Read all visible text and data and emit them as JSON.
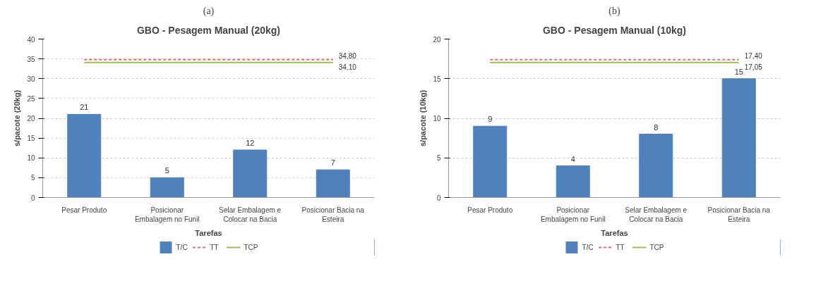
{
  "chart_data": [
    {
      "type": "bar",
      "title": "GBO - Pesagem Manual (20kg)",
      "xlabel": "Tarefas",
      "ylabel": "s/pacote (20kg)",
      "annotations": [
        "(a)"
      ],
      "categories": [
        "Pesar Produto",
        "Posicionar Embalagem no Funil",
        "Selar Embalagem e Colocar na Bacia",
        "Posicionar Bacia na Esteira"
      ],
      "series": [
        {
          "name": "T/C",
          "type": "bar",
          "color": "#4f81bd",
          "values": [
            21,
            5,
            12,
            7
          ],
          "value_labels": [
            "21",
            "5",
            "12",
            "7"
          ]
        },
        {
          "name": "TT",
          "type": "line",
          "line_style": "dashed",
          "color": "#e07070",
          "values": [
            34.8,
            34.8,
            34.8,
            34.8
          ],
          "value_labels": [
            null,
            null,
            null,
            "34,80"
          ]
        },
        {
          "name": "TCP",
          "type": "line",
          "line_style": "solid",
          "color": "#9bbb59",
          "values": [
            34.1,
            34.1,
            34.1,
            34.1
          ],
          "value_labels": [
            null,
            null,
            null,
            "34,10"
          ]
        }
      ],
      "ylim": [
        0,
        40
      ],
      "yticks": [
        0,
        5,
        10,
        15,
        20,
        25,
        30,
        35,
        40
      ],
      "grid": "y",
      "legend": "bottom"
    },
    {
      "type": "bar",
      "title": "GBO - Pesagem Manual (10kg)",
      "xlabel": "Tarefas",
      "ylabel": "s/pacote (10kg)",
      "annotations": [
        "(b)"
      ],
      "categories": [
        "Pesar Produto",
        "Posicionar Embalagem no Funil",
        "Selar Embalagem e Colocar na Bacia",
        "Posicionar Bacia na Esteira"
      ],
      "series": [
        {
          "name": "T/C",
          "type": "bar",
          "color": "#4f81bd",
          "values": [
            9,
            4,
            8,
            15
          ],
          "value_labels": [
            "9",
            "4",
            "8",
            "15"
          ]
        },
        {
          "name": "TT",
          "type": "line",
          "line_style": "dashed",
          "color": "#e07070",
          "values": [
            17.4,
            17.4,
            17.4,
            17.4
          ],
          "value_labels": [
            null,
            null,
            null,
            "17,40"
          ]
        },
        {
          "name": "TCP",
          "type": "line",
          "line_style": "solid",
          "color": "#9bbb59",
          "values": [
            17.05,
            17.05,
            17.05,
            17.05
          ],
          "value_labels": [
            null,
            null,
            null,
            "17,05"
          ]
        }
      ],
      "ylim": [
        0,
        20
      ],
      "yticks": [
        0,
        5,
        10,
        15,
        20
      ],
      "grid": "y",
      "legend": "bottom"
    }
  ]
}
